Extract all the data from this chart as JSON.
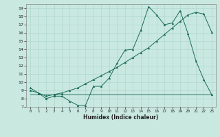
{
  "xlabel": "Humidex (Indice chaleur)",
  "bg_color": "#c8e8e0",
  "line_color": "#1a6b5a",
  "grid_color": "#b0d8d0",
  "ylim": [
    7,
    19.5
  ],
  "xlim": [
    -0.5,
    23.5
  ],
  "yticks": [
    7,
    8,
    9,
    10,
    11,
    12,
    13,
    14,
    15,
    16,
    17,
    18,
    19
  ],
  "xticks": [
    0,
    1,
    2,
    3,
    4,
    5,
    6,
    7,
    8,
    9,
    10,
    11,
    12,
    13,
    14,
    15,
    16,
    17,
    18,
    19,
    20,
    21,
    22,
    23
  ],
  "line1_x": [
    0,
    1,
    2,
    3,
    4,
    5,
    6,
    7,
    8,
    9,
    10,
    11,
    12,
    13,
    14,
    15,
    16,
    17,
    18,
    19,
    20,
    21,
    22,
    23
  ],
  "line1_y": [
    9.3,
    8.7,
    8.0,
    8.3,
    8.3,
    7.7,
    7.2,
    7.2,
    9.5,
    9.5,
    10.5,
    12.3,
    13.9,
    14.0,
    16.3,
    19.2,
    18.2,
    17.0,
    17.2,
    18.7,
    15.9,
    12.6,
    10.3,
    8.5
  ],
  "line2_x": [
    0,
    23
  ],
  "line2_y": [
    8.5,
    8.5
  ],
  "line3_x": [
    0,
    1,
    2,
    3,
    4,
    5,
    6,
    7,
    8,
    9,
    10,
    11,
    12,
    13,
    14,
    15,
    16,
    17,
    18,
    19,
    20,
    21,
    22,
    23
  ],
  "line3_y": [
    9.0,
    8.7,
    8.3,
    8.5,
    8.7,
    9.0,
    9.3,
    9.8,
    10.3,
    10.8,
    11.3,
    11.8,
    12.4,
    13.0,
    13.6,
    14.2,
    15.0,
    15.8,
    16.6,
    17.4,
    18.2,
    18.5,
    18.3,
    16.1
  ]
}
